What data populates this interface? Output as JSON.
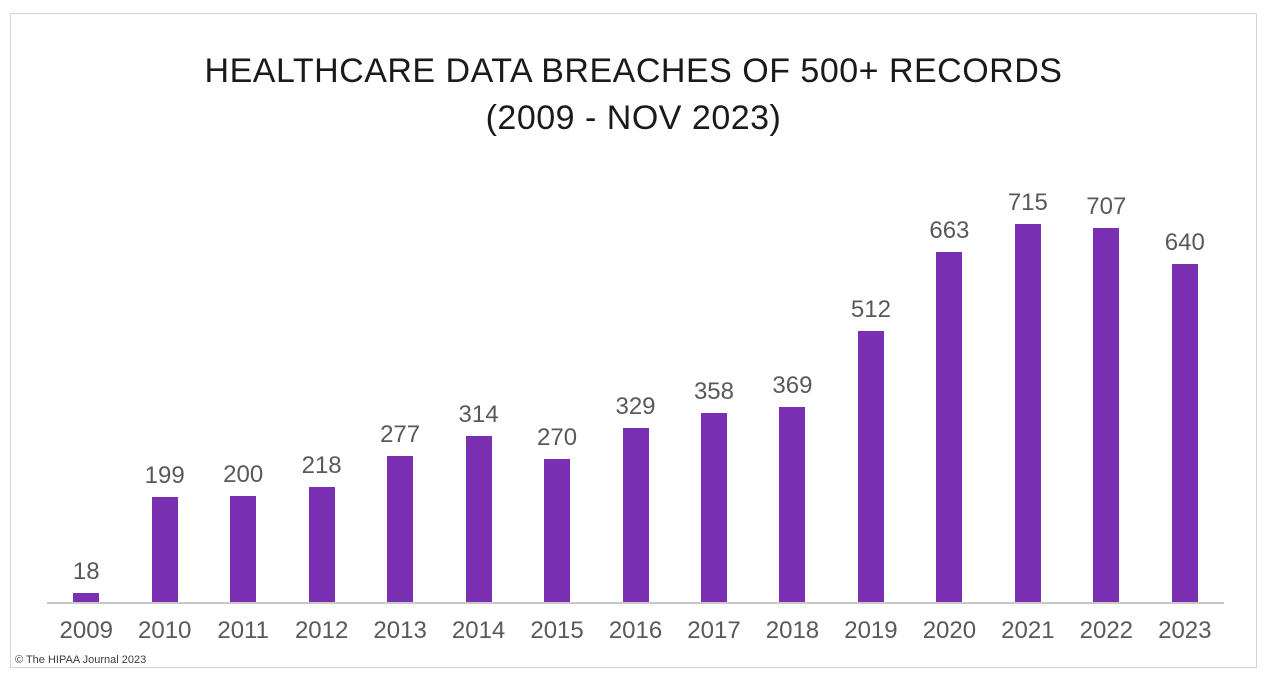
{
  "chart_data": {
    "type": "bar",
    "title": "HEALTHCARE DATA BREACHES OF 500+ RECORDS",
    "subtitle": "(2009 - NOV 2023)",
    "categories": [
      "2009",
      "2010",
      "2011",
      "2012",
      "2013",
      "2014",
      "2015",
      "2016",
      "2017",
      "2018",
      "2019",
      "2020",
      "2021",
      "2022",
      "2023"
    ],
    "values": [
      18,
      199,
      200,
      218,
      277,
      314,
      270,
      329,
      358,
      369,
      512,
      663,
      715,
      707,
      640
    ],
    "xlabel": "",
    "ylabel": "",
    "ylim": [
      0,
      715
    ],
    "grid": false,
    "legend": false,
    "data_labels": true,
    "bar_color": "#7b30b3",
    "label_color": "#595959",
    "title_color": "#1a1a1a",
    "axis_line_color": "#c8c8c8",
    "frame_border_color": "#d4d4d4"
  },
  "footer": {
    "attribution": "© The HIPAA Journal 2023"
  }
}
